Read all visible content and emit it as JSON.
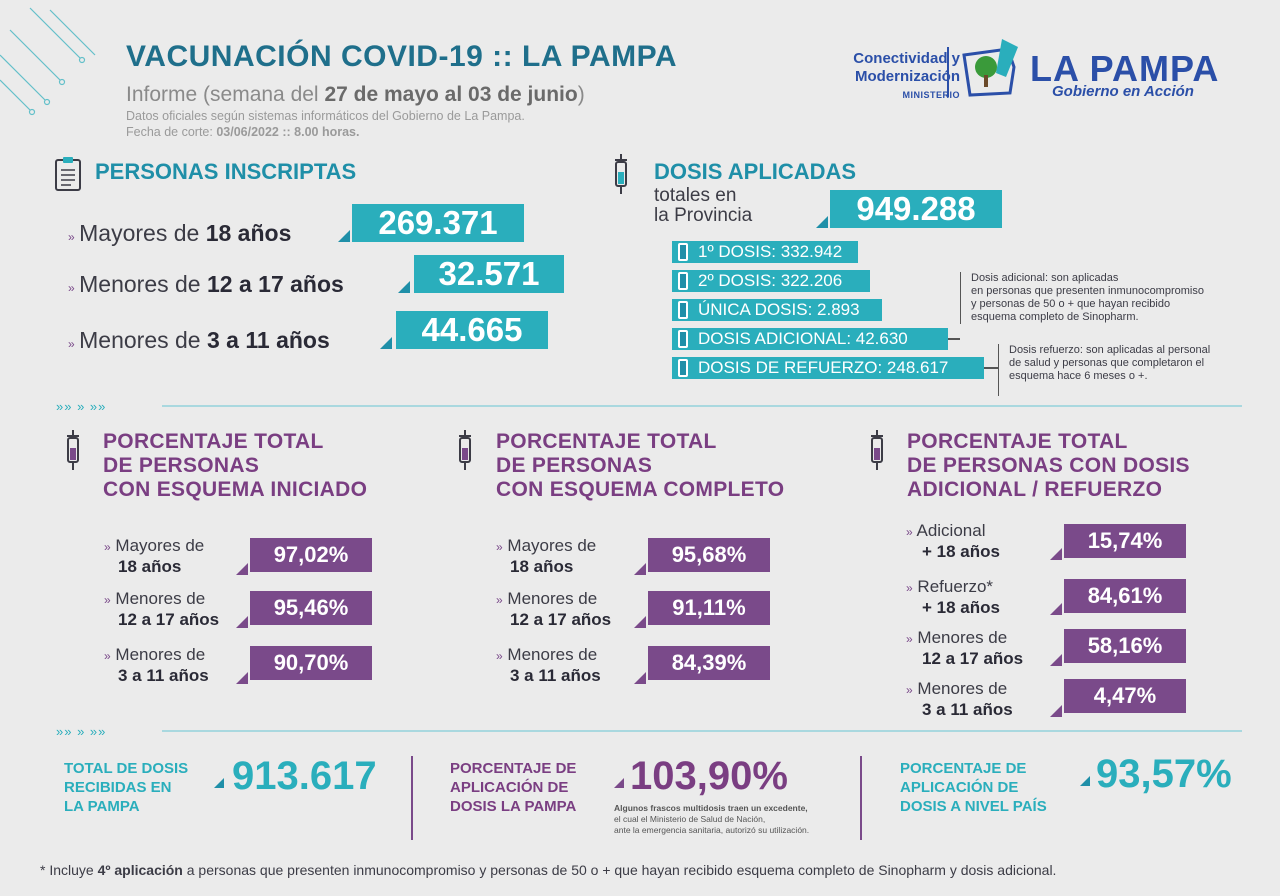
{
  "header": {
    "title": "VACUNACIÓN COVID-19 :: LA PAMPA",
    "subtitle_prefix": "Informe (semana del ",
    "subtitle_dates": "27 de mayo al 03 de junio",
    "subtitle_suffix": ")",
    "source": "Datos oficiales según sistemas informáticos del Gobierno de La Pampa.",
    "cutoff_prefix": "Fecha de corte: ",
    "cutoff_value": "03/06/2022 :: 8.00 horas."
  },
  "logo": {
    "ministry_line1": "Conectividad y",
    "ministry_line2": "Modernización",
    "ministry_line3": "MINISTERIO",
    "name": "LA PAMPA",
    "tagline": "Gobierno en Acción"
  },
  "inscriptas": {
    "title": "PERSONAS INSCRIPTAS",
    "rows": [
      {
        "label_a": "Mayores de ",
        "label_b": "18 años",
        "value": "269.371"
      },
      {
        "label_a": "Menores de ",
        "label_b": "12 a 17 años",
        "value": "32.571"
      },
      {
        "label_a": "Menores de ",
        "label_b": "3 a 11 años",
        "value": "44.665"
      }
    ]
  },
  "dosis": {
    "title": "DOSIS APLICADAS",
    "total_label_1": "totales en",
    "total_label_2": "la Provincia",
    "total_value": "949.288",
    "items": [
      {
        "label": "1º DOSIS: 332.942"
      },
      {
        "label": "2º DOSIS: 322.206"
      },
      {
        "label": "ÚNICA DOSIS: 2.893"
      },
      {
        "label": "DOSIS ADICIONAL: 42.630"
      },
      {
        "label": "DOSIS DE REFUERZO: 248.617"
      }
    ],
    "note_adicional": [
      "Dosis adicional: son aplicadas",
      "en personas que presenten inmunocompromiso",
      "y personas de 50 o + que hayan recibido",
      "esquema completo de Sinopharm."
    ],
    "note_refuerzo": [
      "Dosis refuerzo: son aplicadas al personal",
      "de salud y personas que completaron el",
      "esquema hace 6 meses o +."
    ]
  },
  "arrows_text": "»» » »»",
  "iniciado": {
    "title": [
      "PORCENTAJE TOTAL",
      "DE PERSONAS",
      "CON ESQUEMA INICIADO"
    ],
    "rows": [
      {
        "label_a": "Mayores de",
        "label_b": "18 años",
        "value": "97,02%"
      },
      {
        "label_a": "Menores de",
        "label_b": "12 a 17 años",
        "value": "95,46%"
      },
      {
        "label_a": "Menores de",
        "label_b": "3 a 11 años",
        "value": "90,70%"
      }
    ]
  },
  "completo": {
    "title": [
      "PORCENTAJE TOTAL",
      "DE PERSONAS",
      "CON ESQUEMA COMPLETO"
    ],
    "rows": [
      {
        "label_a": "Mayores de",
        "label_b": "18 años",
        "value": "95,68%"
      },
      {
        "label_a": "Menores de",
        "label_b": "12 a 17 años",
        "value": "91,11%"
      },
      {
        "label_a": "Menores de",
        "label_b": "3 a 11 años",
        "value": "84,39%"
      }
    ]
  },
  "adicional": {
    "title": [
      "PORCENTAJE TOTAL",
      "DE PERSONAS CON DOSIS",
      "ADICIONAL / REFUERZO"
    ],
    "rows": [
      {
        "label_a": "Adicional",
        "label_b": "+ 18 años",
        "value": "15,74%"
      },
      {
        "label_a": "Refuerzo*",
        "label_b": "+ 18 años",
        "value": "84,61%"
      },
      {
        "label_a": "Menores de",
        "label_b": "12 a 17 años",
        "value": "58,16%"
      },
      {
        "label_a": "Menores de",
        "label_b": "3 a 11 años",
        "value": "4,47%"
      }
    ]
  },
  "totals": {
    "recibidas_label": [
      "TOTAL DE DOSIS",
      "RECIBIDAS EN",
      "LA PAMPA"
    ],
    "recibidas_value": "913.617",
    "aplic_lp_label": [
      "PORCENTAJE DE",
      "APLICACIÓN DE",
      "DOSIS LA PAMPA"
    ],
    "aplic_lp_value": "103,90%",
    "aplic_lp_note": [
      "Algunos frascos multidosis traen un excedente,",
      "el cual el Ministerio de Salud de Nación,",
      "ante la emergencia sanitaria, autorizó su utilización."
    ],
    "aplic_pais_label": [
      "PORCENTAJE DE",
      "APLICACIÓN DE",
      "DOSIS A NIVEL PAÍS"
    ],
    "aplic_pais_value": "93,57%"
  },
  "footer": {
    "prefix": "* Incluye ",
    "bold": "4º aplicación",
    "suffix": " a personas que presenten inmunocompromiso y personas de 50 o + que hayan recibido esquema completo de Sinopharm y dosis adicional."
  },
  "colors": {
    "teal": "#2aaebc",
    "purple": "#7a4a8a",
    "navy": "#2b4fa8",
    "background": "#ebebeb"
  }
}
